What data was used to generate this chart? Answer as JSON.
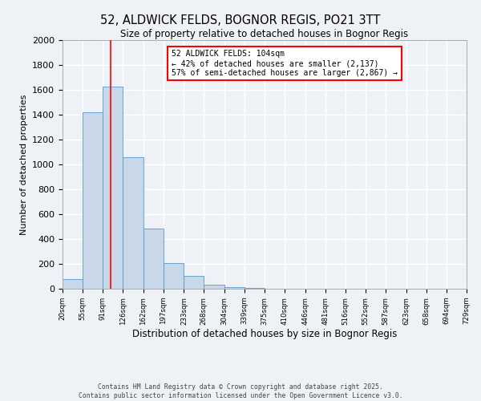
{
  "title": "52, ALDWICK FELDS, BOGNOR REGIS, PO21 3TT",
  "subtitle": "Size of property relative to detached houses in Bognor Regis",
  "xlabel": "Distribution of detached houses by size in Bognor Regis",
  "ylabel": "Number of detached properties",
  "bin_edges": [
    20,
    55,
    91,
    126,
    162,
    197,
    233,
    268,
    304,
    339,
    375,
    410,
    446,
    481,
    516,
    552,
    587,
    623,
    658,
    694,
    729
  ],
  "bar_heights": [
    80,
    1420,
    1625,
    1055,
    485,
    205,
    105,
    35,
    10,
    5,
    0,
    0,
    0,
    0,
    0,
    0,
    0,
    0,
    0,
    0
  ],
  "bar_color": "#c8d8e8",
  "bar_edge_color": "#5599cc",
  "vline_x": 104,
  "vline_color": "red",
  "annotation_text": "52 ALDWICK FELDS: 104sqm\n← 42% of detached houses are smaller (2,137)\n57% of semi-detached houses are larger (2,867) →",
  "annotation_box_color": "white",
  "annotation_box_edge_color": "red",
  "ylim": [
    0,
    2000
  ],
  "yticks": [
    0,
    200,
    400,
    600,
    800,
    1000,
    1200,
    1400,
    1600,
    1800,
    2000
  ],
  "tick_labels": [
    "20sqm",
    "55sqm",
    "91sqm",
    "126sqm",
    "162sqm",
    "197sqm",
    "233sqm",
    "268sqm",
    "304sqm",
    "339sqm",
    "375sqm",
    "410sqm",
    "446sqm",
    "481sqm",
    "516sqm",
    "552sqm",
    "587sqm",
    "623sqm",
    "658sqm",
    "694sqm",
    "729sqm"
  ],
  "footer_line1": "Contains HM Land Registry data © Crown copyright and database right 2025.",
  "footer_line2": "Contains public sector information licensed under the Open Government Licence v3.0.",
  "bg_color": "#eef2f7",
  "grid_color": "#ffffff"
}
